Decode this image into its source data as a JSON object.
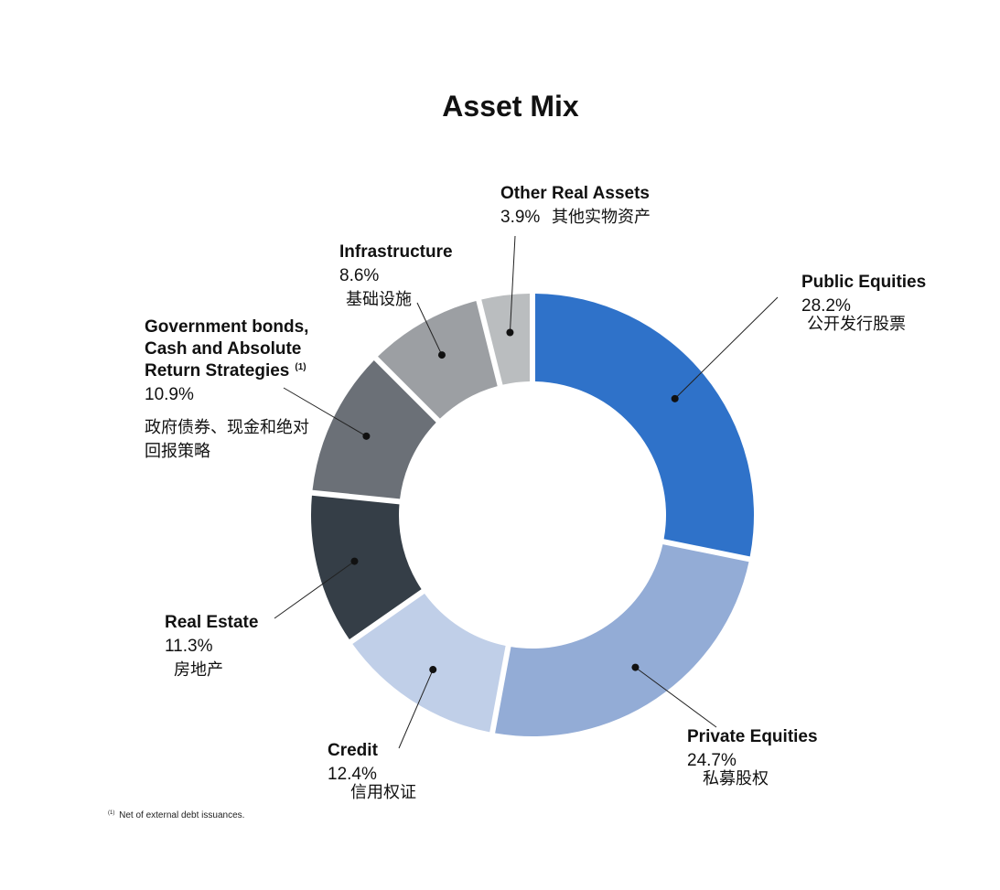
{
  "chart_data": {
    "type": "pie",
    "title": "Asset Mix",
    "categories": [
      "Public Equities",
      "Private Equities",
      "Credit",
      "Real Estate",
      "Government bonds, Cash and Absolute Return Strategies",
      "Infrastructure",
      "Other Real Assets"
    ],
    "values": [
      28.2,
      24.7,
      12.4,
      11.3,
      10.9,
      8.6,
      3.9
    ],
    "percent_labels": [
      "28.2%",
      "24.7%",
      "12.4%",
      "11.3%",
      "10.9%",
      "8.6%",
      "3.9%"
    ],
    "labels_zh": [
      "公开发行股票",
      "私募股权",
      "信用权证",
      "房地产",
      "政府债券、现金和绝对回报策略",
      "基础设施",
      "其他实物资产"
    ],
    "label_name_lines": [
      [
        "Public Equities"
      ],
      [
        "Private Equities"
      ],
      [
        "Credit"
      ],
      [
        "Real Estate"
      ],
      [
        "Government bonds,",
        "Cash and Absolute",
        "Return Strategies"
      ],
      [
        "Infrastructure"
      ],
      [
        "Other Real Assets"
      ]
    ],
    "label_zh_lines": [
      [
        "公开发行股票"
      ],
      [
        "私募股权"
      ],
      [
        "信用权证"
      ],
      [
        "房地产"
      ],
      [
        "政府债券、现金和绝对",
        "回报策略"
      ],
      [
        "基础设施"
      ],
      [
        "其他实物资产"
      ]
    ],
    "footnote_marks": [
      "",
      "",
      "",
      "",
      "(1)",
      "",
      ""
    ],
    "colors": [
      "#2f72c9",
      "#93acd6",
      "#c0cfe8",
      "#353e47",
      "#6b7077",
      "#9c9fa3",
      "#babdbf"
    ],
    "donut": true,
    "legend": "none (leader-line labels)"
  },
  "footnote": {
    "mark": "(1)",
    "text": "Net of external debt issuances."
  }
}
